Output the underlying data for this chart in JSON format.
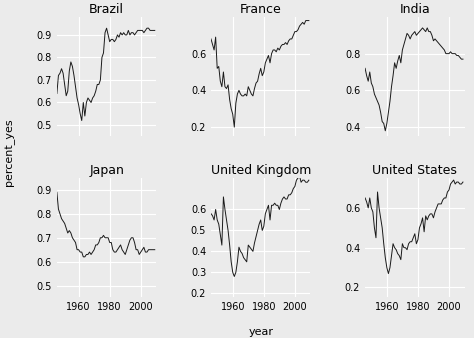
{
  "countries": [
    "Brazil",
    "France",
    "India",
    "Japan",
    "United Kingdom",
    "United States"
  ],
  "bg_color": "#EBEBEB",
  "line_color": "#1a1a1a",
  "grid_color": "#ffffff",
  "ylabel": "percent_yes",
  "xlabel": "year",
  "data": {
    "Brazil": {
      "years": [
        1946,
        1947,
        1948,
        1949,
        1950,
        1951,
        1952,
        1953,
        1954,
        1955,
        1956,
        1957,
        1958,
        1959,
        1960,
        1961,
        1962,
        1963,
        1964,
        1965,
        1966,
        1967,
        1968,
        1969,
        1970,
        1971,
        1972,
        1973,
        1974,
        1975,
        1976,
        1977,
        1978,
        1979,
        1980,
        1981,
        1982,
        1983,
        1984,
        1985,
        1986,
        1987,
        1988,
        1989,
        1990,
        1991,
        1992,
        1993,
        1994,
        1995,
        1996,
        1997,
        1998,
        1999,
        2000,
        2001,
        2002,
        2003,
        2004,
        2005,
        2006,
        2007,
        2008,
        2009
      ],
      "values": [
        0.64,
        0.72,
        0.73,
        0.75,
        0.73,
        0.68,
        0.63,
        0.65,
        0.74,
        0.78,
        0.76,
        0.72,
        0.67,
        0.62,
        0.59,
        0.55,
        0.52,
        0.6,
        0.54,
        0.6,
        0.62,
        0.61,
        0.6,
        0.62,
        0.63,
        0.65,
        0.68,
        0.68,
        0.7,
        0.8,
        0.82,
        0.91,
        0.93,
        0.9,
        0.87,
        0.88,
        0.88,
        0.87,
        0.88,
        0.9,
        0.89,
        0.91,
        0.9,
        0.91,
        0.9,
        0.9,
        0.92,
        0.9,
        0.91,
        0.91,
        0.9,
        0.91,
        0.92,
        0.92,
        0.92,
        0.92,
        0.91,
        0.92,
        0.93,
        0.93,
        0.92,
        0.92,
        0.92,
        0.92
      ]
    },
    "France": {
      "years": [
        1946,
        1947,
        1948,
        1949,
        1950,
        1951,
        1952,
        1953,
        1954,
        1955,
        1956,
        1957,
        1958,
        1959,
        1960,
        1961,
        1962,
        1963,
        1964,
        1965,
        1966,
        1967,
        1968,
        1969,
        1970,
        1971,
        1972,
        1973,
        1974,
        1975,
        1976,
        1977,
        1978,
        1979,
        1980,
        1981,
        1982,
        1983,
        1984,
        1985,
        1986,
        1987,
        1988,
        1989,
        1990,
        1991,
        1992,
        1993,
        1994,
        1995,
        1996,
        1997,
        1998,
        1999,
        2000,
        2001,
        2002,
        2003,
        2004,
        2005,
        2006,
        2007,
        2008,
        2009
      ],
      "values": [
        0.68,
        0.65,
        0.62,
        0.69,
        0.52,
        0.53,
        0.45,
        0.42,
        0.5,
        0.42,
        0.41,
        0.43,
        0.35,
        0.3,
        0.27,
        0.2,
        0.33,
        0.38,
        0.4,
        0.38,
        0.37,
        0.37,
        0.38,
        0.37,
        0.42,
        0.4,
        0.38,
        0.37,
        0.41,
        0.44,
        0.45,
        0.49,
        0.52,
        0.48,
        0.5,
        0.55,
        0.57,
        0.59,
        0.55,
        0.6,
        0.62,
        0.62,
        0.61,
        0.63,
        0.62,
        0.64,
        0.65,
        0.65,
        0.66,
        0.65,
        0.67,
        0.68,
        0.68,
        0.7,
        0.72,
        0.72,
        0.73,
        0.75,
        0.76,
        0.77,
        0.76,
        0.78,
        0.78,
        0.78
      ]
    },
    "India": {
      "years": [
        1946,
        1947,
        1948,
        1949,
        1950,
        1951,
        1952,
        1953,
        1954,
        1955,
        1956,
        1957,
        1958,
        1959,
        1960,
        1961,
        1962,
        1963,
        1964,
        1965,
        1966,
        1967,
        1968,
        1969,
        1970,
        1971,
        1972,
        1973,
        1974,
        1975,
        1976,
        1977,
        1978,
        1979,
        1980,
        1981,
        1982,
        1983,
        1984,
        1985,
        1986,
        1987,
        1988,
        1989,
        1990,
        1991,
        1992,
        1993,
        1994,
        1995,
        1996,
        1997,
        1998,
        1999,
        2000,
        2001,
        2002,
        2003,
        2004,
        2005,
        2006,
        2007,
        2008,
        2009
      ],
      "values": [
        0.72,
        0.68,
        0.65,
        0.7,
        0.64,
        0.62,
        0.58,
        0.56,
        0.54,
        0.52,
        0.48,
        0.43,
        0.42,
        0.38,
        0.42,
        0.48,
        0.54,
        0.62,
        0.68,
        0.75,
        0.72,
        0.76,
        0.79,
        0.75,
        0.82,
        0.85,
        0.88,
        0.91,
        0.9,
        0.88,
        0.9,
        0.91,
        0.92,
        0.9,
        0.91,
        0.92,
        0.93,
        0.94,
        0.93,
        0.92,
        0.94,
        0.92,
        0.92,
        0.9,
        0.87,
        0.88,
        0.87,
        0.86,
        0.85,
        0.84,
        0.83,
        0.82,
        0.8,
        0.8,
        0.8,
        0.81,
        0.8,
        0.8,
        0.8,
        0.79,
        0.79,
        0.78,
        0.77,
        0.77
      ]
    },
    "Japan": {
      "years": [
        1946,
        1947,
        1948,
        1949,
        1950,
        1951,
        1952,
        1953,
        1954,
        1955,
        1956,
        1957,
        1958,
        1959,
        1960,
        1961,
        1962,
        1963,
        1964,
        1965,
        1966,
        1967,
        1968,
        1969,
        1970,
        1971,
        1972,
        1973,
        1974,
        1975,
        1976,
        1977,
        1978,
        1979,
        1980,
        1981,
        1982,
        1983,
        1984,
        1985,
        1986,
        1987,
        1988,
        1989,
        1990,
        1991,
        1992,
        1993,
        1994,
        1995,
        1996,
        1997,
        1998,
        1999,
        2000,
        2001,
        2002,
        2003,
        2004,
        2005,
        2006,
        2007,
        2008,
        2009
      ],
      "values": [
        0.89,
        0.82,
        0.8,
        0.78,
        0.77,
        0.76,
        0.74,
        0.72,
        0.73,
        0.72,
        0.7,
        0.69,
        0.68,
        0.65,
        0.65,
        0.64,
        0.64,
        0.62,
        0.62,
        0.63,
        0.63,
        0.64,
        0.63,
        0.64,
        0.65,
        0.67,
        0.67,
        0.68,
        0.7,
        0.7,
        0.71,
        0.7,
        0.7,
        0.7,
        0.68,
        0.68,
        0.65,
        0.64,
        0.64,
        0.65,
        0.66,
        0.67,
        0.65,
        0.64,
        0.63,
        0.65,
        0.67,
        0.69,
        0.7,
        0.7,
        0.68,
        0.65,
        0.65,
        0.63,
        0.64,
        0.65,
        0.66,
        0.64,
        0.64,
        0.65,
        0.65,
        0.65,
        0.65,
        0.65
      ]
    },
    "United Kingdom": {
      "years": [
        1946,
        1947,
        1948,
        1949,
        1950,
        1951,
        1952,
        1953,
        1954,
        1955,
        1956,
        1957,
        1958,
        1959,
        1960,
        1961,
        1962,
        1963,
        1964,
        1965,
        1966,
        1967,
        1968,
        1969,
        1970,
        1971,
        1972,
        1973,
        1974,
        1975,
        1976,
        1977,
        1978,
        1979,
        1980,
        1981,
        1982,
        1983,
        1984,
        1985,
        1986,
        1987,
        1988,
        1989,
        1990,
        1991,
        1992,
        1993,
        1994,
        1995,
        1996,
        1997,
        1998,
        1999,
        2000,
        2001,
        2002,
        2003,
        2004,
        2005,
        2006,
        2007,
        2008,
        2009
      ],
      "values": [
        0.58,
        0.57,
        0.55,
        0.6,
        0.55,
        0.53,
        0.48,
        0.43,
        0.66,
        0.6,
        0.55,
        0.5,
        0.43,
        0.35,
        0.3,
        0.28,
        0.3,
        0.35,
        0.42,
        0.4,
        0.39,
        0.37,
        0.36,
        0.35,
        0.43,
        0.42,
        0.41,
        0.4,
        0.44,
        0.47,
        0.5,
        0.53,
        0.55,
        0.5,
        0.52,
        0.58,
        0.6,
        0.62,
        0.55,
        0.62,
        0.62,
        0.63,
        0.62,
        0.62,
        0.6,
        0.63,
        0.65,
        0.66,
        0.65,
        0.65,
        0.67,
        0.67,
        0.68,
        0.7,
        0.71,
        0.74,
        0.75,
        0.76,
        0.73,
        0.74,
        0.74,
        0.73,
        0.73,
        0.74
      ]
    },
    "United States": {
      "years": [
        1946,
        1947,
        1948,
        1949,
        1950,
        1951,
        1952,
        1953,
        1954,
        1955,
        1956,
        1957,
        1958,
        1959,
        1960,
        1961,
        1962,
        1963,
        1964,
        1965,
        1966,
        1967,
        1968,
        1969,
        1970,
        1971,
        1972,
        1973,
        1974,
        1975,
        1976,
        1977,
        1978,
        1979,
        1980,
        1981,
        1982,
        1983,
        1984,
        1985,
        1986,
        1987,
        1988,
        1989,
        1990,
        1991,
        1992,
        1993,
        1994,
        1995,
        1996,
        1997,
        1998,
        1999,
        2000,
        2001,
        2002,
        2003,
        2004,
        2005,
        2006,
        2007,
        2008,
        2009
      ],
      "values": [
        0.65,
        0.63,
        0.6,
        0.65,
        0.6,
        0.58,
        0.5,
        0.45,
        0.68,
        0.6,
        0.55,
        0.5,
        0.42,
        0.35,
        0.3,
        0.27,
        0.3,
        0.36,
        0.42,
        0.4,
        0.39,
        0.37,
        0.36,
        0.34,
        0.42,
        0.4,
        0.4,
        0.39,
        0.42,
        0.43,
        0.43,
        0.45,
        0.47,
        0.42,
        0.44,
        0.5,
        0.52,
        0.55,
        0.48,
        0.56,
        0.54,
        0.56,
        0.57,
        0.57,
        0.55,
        0.58,
        0.6,
        0.62,
        0.62,
        0.62,
        0.64,
        0.65,
        0.65,
        0.68,
        0.69,
        0.72,
        0.73,
        0.74,
        0.72,
        0.73,
        0.73,
        0.72,
        0.72,
        0.73
      ]
    }
  },
  "ylims": {
    "Brazil": [
      0.45,
      0.98
    ],
    "France": [
      0.15,
      0.8
    ],
    "India": [
      0.35,
      1.0
    ],
    "Japan": [
      0.45,
      0.95
    ],
    "United Kingdom": [
      0.18,
      0.75
    ],
    "United States": [
      0.15,
      0.75
    ]
  },
  "yticks": {
    "Brazil": [
      0.5,
      0.6,
      0.7,
      0.8,
      0.9
    ],
    "France": [
      0.2,
      0.4,
      0.6
    ],
    "India": [
      0.4,
      0.6,
      0.8
    ],
    "Japan": [
      0.5,
      0.6,
      0.7,
      0.8,
      0.9
    ],
    "United Kingdom": [
      0.2,
      0.3,
      0.4,
      0.5,
      0.6
    ],
    "United States": [
      0.2,
      0.4,
      0.6
    ]
  },
  "xticks": [
    1960,
    1980,
    2000
  ],
  "title_fontsize": 9,
  "label_fontsize": 8,
  "tick_fontsize": 7
}
